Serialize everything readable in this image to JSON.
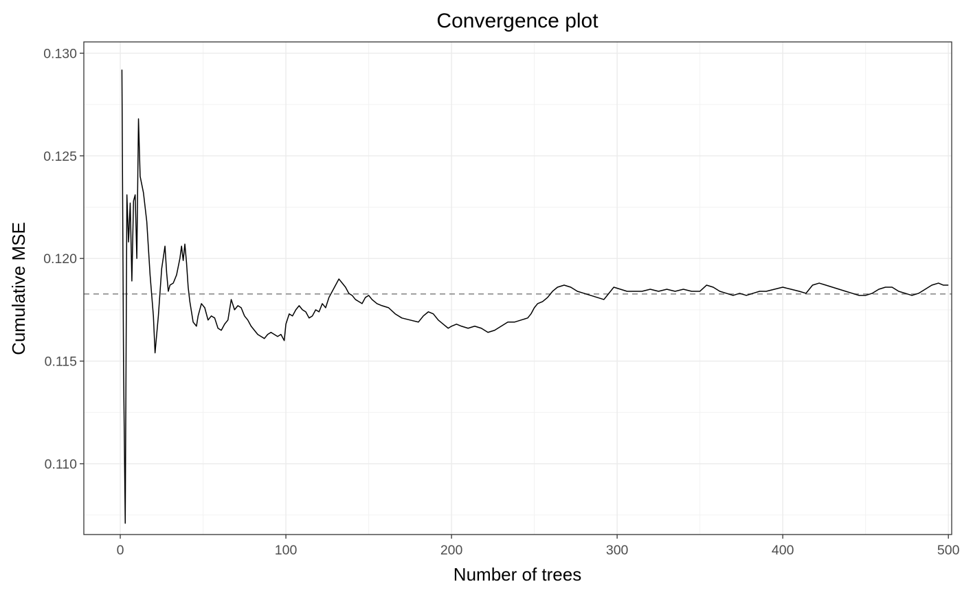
{
  "chart_data": {
    "type": "line",
    "title": "Convergence plot",
    "xlabel": "Number of trees",
    "ylabel": "Cumulative MSE",
    "xlim": [
      -22,
      502
    ],
    "ylim": [
      0.10655,
      0.13055
    ],
    "x_ticks": [
      0,
      100,
      200,
      300,
      400,
      500
    ],
    "x_tick_labels": [
      "0",
      "100",
      "200",
      "300",
      "400",
      "500"
    ],
    "y_ticks": [
      0.11,
      0.115,
      0.12,
      0.125,
      0.13
    ],
    "y_tick_labels": [
      "0.110",
      "0.115",
      "0.120",
      "0.125",
      "0.130"
    ],
    "grid": true,
    "reference_line": {
      "y": 0.11827,
      "style": "dashed",
      "color": "#808080"
    },
    "series": [
      {
        "name": "Cumulative MSE",
        "color": "#000000",
        "points": [
          [
            1,
            0.1292
          ],
          [
            2,
            0.1145
          ],
          [
            3,
            0.1071
          ],
          [
            4,
            0.1231
          ],
          [
            5,
            0.1208
          ],
          [
            6,
            0.1227
          ],
          [
            7,
            0.1189
          ],
          [
            8,
            0.1228
          ],
          [
            9,
            0.1231
          ],
          [
            10,
            0.12
          ],
          [
            11,
            0.1268
          ],
          [
            12,
            0.124
          ],
          [
            14,
            0.1232
          ],
          [
            16,
            0.1218
          ],
          [
            18,
            0.1192
          ],
          [
            20,
            0.1172
          ],
          [
            21,
            0.1154
          ],
          [
            23,
            0.1172
          ],
          [
            25,
            0.1195
          ],
          [
            27,
            0.1206
          ],
          [
            28,
            0.1193
          ],
          [
            29,
            0.1184
          ],
          [
            30,
            0.1187
          ],
          [
            32,
            0.1188
          ],
          [
            34,
            0.1192
          ],
          [
            36,
            0.12
          ],
          [
            37,
            0.1206
          ],
          [
            38,
            0.1199
          ],
          [
            39,
            0.1207
          ],
          [
            40,
            0.1198
          ],
          [
            41,
            0.1186
          ],
          [
            42,
            0.1179
          ],
          [
            44,
            0.1169
          ],
          [
            46,
            0.1167
          ],
          [
            47,
            0.1172
          ],
          [
            49,
            0.1178
          ],
          [
            51,
            0.1176
          ],
          [
            53,
            0.117
          ],
          [
            55,
            0.1172
          ],
          [
            57,
            0.1171
          ],
          [
            59,
            0.1166
          ],
          [
            61,
            0.1165
          ],
          [
            63,
            0.1168
          ],
          [
            65,
            0.117
          ],
          [
            67,
            0.118
          ],
          [
            69,
            0.1175
          ],
          [
            71,
            0.1177
          ],
          [
            73,
            0.1176
          ],
          [
            75,
            0.1172
          ],
          [
            77,
            0.117
          ],
          [
            79,
            0.1167
          ],
          [
            81,
            0.1165
          ],
          [
            83,
            0.1163
          ],
          [
            85,
            0.1162
          ],
          [
            87,
            0.1161
          ],
          [
            89,
            0.1163
          ],
          [
            91,
            0.1164
          ],
          [
            93,
            0.1163
          ],
          [
            95,
            0.1162
          ],
          [
            97,
            0.1163
          ],
          [
            99,
            0.116
          ],
          [
            100,
            0.1168
          ],
          [
            102,
            0.1173
          ],
          [
            104,
            0.1172
          ],
          [
            106,
            0.1175
          ],
          [
            108,
            0.1177
          ],
          [
            110,
            0.1175
          ],
          [
            112,
            0.1174
          ],
          [
            114,
            0.1171
          ],
          [
            116,
            0.1172
          ],
          [
            118,
            0.1175
          ],
          [
            120,
            0.1174
          ],
          [
            122,
            0.1178
          ],
          [
            124,
            0.1176
          ],
          [
            126,
            0.1181
          ],
          [
            128,
            0.1184
          ],
          [
            130,
            0.1187
          ],
          [
            132,
            0.119
          ],
          [
            134,
            0.1188
          ],
          [
            136,
            0.1186
          ],
          [
            138,
            0.1183
          ],
          [
            140,
            0.1182
          ],
          [
            142,
            0.118
          ],
          [
            144,
            0.1179
          ],
          [
            146,
            0.1178
          ],
          [
            148,
            0.1181
          ],
          [
            150,
            0.1182
          ],
          [
            152,
            0.118
          ],
          [
            155,
            0.1178
          ],
          [
            158,
            0.1177
          ],
          [
            162,
            0.1176
          ],
          [
            166,
            0.1173
          ],
          [
            170,
            0.1171
          ],
          [
            175,
            0.117
          ],
          [
            180,
            0.1169
          ],
          [
            183,
            0.1172
          ],
          [
            186,
            0.1174
          ],
          [
            189,
            0.1173
          ],
          [
            192,
            0.117
          ],
          [
            195,
            0.1168
          ],
          [
            198,
            0.1166
          ],
          [
            200,
            0.1167
          ],
          [
            203,
            0.1168
          ],
          [
            206,
            0.1167
          ],
          [
            210,
            0.1166
          ],
          [
            214,
            0.1167
          ],
          [
            218,
            0.1166
          ],
          [
            222,
            0.1164
          ],
          [
            226,
            0.1165
          ],
          [
            230,
            0.1167
          ],
          [
            234,
            0.1169
          ],
          [
            238,
            0.1169
          ],
          [
            242,
            0.117
          ],
          [
            246,
            0.1171
          ],
          [
            248,
            0.1173
          ],
          [
            250,
            0.1176
          ],
          [
            252,
            0.1178
          ],
          [
            255,
            0.1179
          ],
          [
            258,
            0.1181
          ],
          [
            261,
            0.1184
          ],
          [
            264,
            0.1186
          ],
          [
            268,
            0.1187
          ],
          [
            272,
            0.1186
          ],
          [
            276,
            0.1184
          ],
          [
            280,
            0.1183
          ],
          [
            284,
            0.1182
          ],
          [
            288,
            0.1181
          ],
          [
            292,
            0.118
          ],
          [
            295,
            0.1183
          ],
          [
            298,
            0.1186
          ],
          [
            302,
            0.1185
          ],
          [
            306,
            0.1184
          ],
          [
            310,
            0.1184
          ],
          [
            315,
            0.1184
          ],
          [
            320,
            0.1185
          ],
          [
            325,
            0.1184
          ],
          [
            330,
            0.1185
          ],
          [
            335,
            0.1184
          ],
          [
            340,
            0.1185
          ],
          [
            345,
            0.1184
          ],
          [
            350,
            0.1184
          ],
          [
            354,
            0.1187
          ],
          [
            358,
            0.1186
          ],
          [
            362,
            0.1184
          ],
          [
            366,
            0.1183
          ],
          [
            370,
            0.1182
          ],
          [
            374,
            0.1183
          ],
          [
            378,
            0.1182
          ],
          [
            382,
            0.1183
          ],
          [
            386,
            0.1184
          ],
          [
            390,
            0.1184
          ],
          [
            395,
            0.1185
          ],
          [
            400,
            0.1186
          ],
          [
            405,
            0.1185
          ],
          [
            410,
            0.1184
          ],
          [
            414,
            0.1183
          ],
          [
            418,
            0.1187
          ],
          [
            422,
            0.1188
          ],
          [
            426,
            0.1187
          ],
          [
            430,
            0.1186
          ],
          [
            434,
            0.1185
          ],
          [
            438,
            0.1184
          ],
          [
            442,
            0.1183
          ],
          [
            446,
            0.1182
          ],
          [
            450,
            0.1182
          ],
          [
            454,
            0.1183
          ],
          [
            458,
            0.1185
          ],
          [
            462,
            0.1186
          ],
          [
            466,
            0.1186
          ],
          [
            470,
            0.1184
          ],
          [
            474,
            0.1183
          ],
          [
            478,
            0.1182
          ],
          [
            482,
            0.1183
          ],
          [
            486,
            0.1185
          ],
          [
            490,
            0.1187
          ],
          [
            494,
            0.1188
          ],
          [
            497,
            0.1187
          ],
          [
            500,
            0.1187
          ]
        ]
      }
    ]
  }
}
